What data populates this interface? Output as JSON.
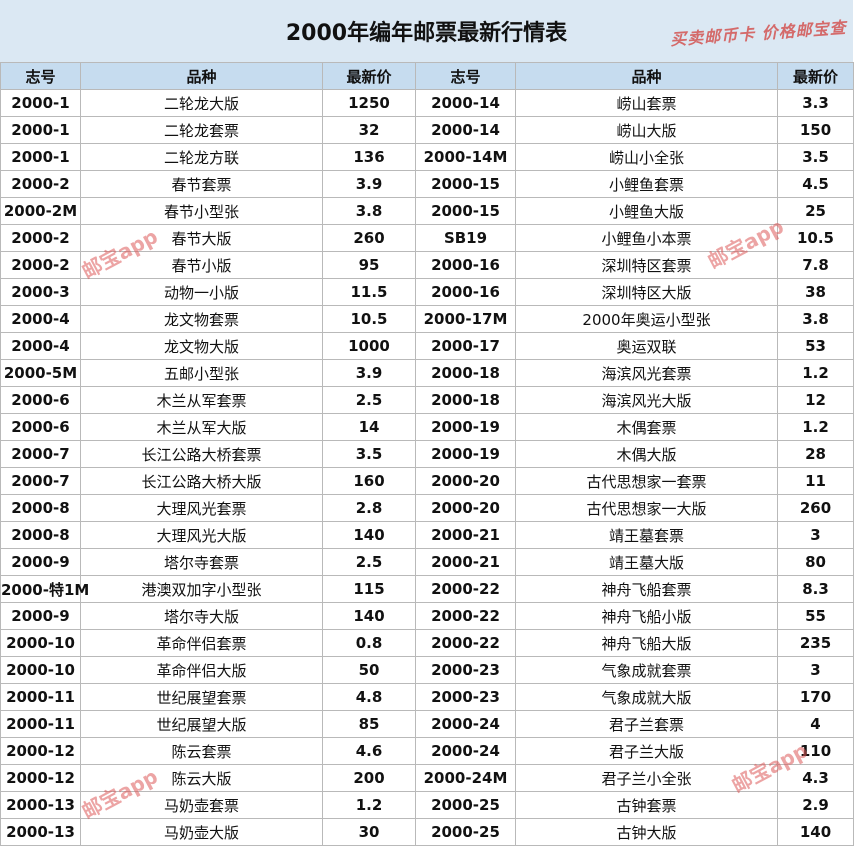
{
  "title": "2000年编年邮票最新行情表",
  "slogan": "买卖邮币卡 价格邮宝查",
  "watermark": "邮宝app",
  "headers": [
    "志号",
    "品种",
    "最新价",
    "志号",
    "品种",
    "最新价"
  ],
  "rows": [
    [
      "2000-1",
      "二轮龙大版",
      "1250",
      "2000-14",
      "崂山套票",
      "3.3"
    ],
    [
      "2000-1",
      "二轮龙套票",
      "32",
      "2000-14",
      "崂山大版",
      "150"
    ],
    [
      "2000-1",
      "二轮龙方联",
      "136",
      "2000-14M",
      "崂山小全张",
      "3.5"
    ],
    [
      "2000-2",
      "春节套票",
      "3.9",
      "2000-15",
      "小鲤鱼套票",
      "4.5"
    ],
    [
      "2000-2M",
      "春节小型张",
      "3.8",
      "2000-15",
      "小鲤鱼大版",
      "25"
    ],
    [
      "2000-2",
      "春节大版",
      "260",
      "SB19",
      "小鲤鱼小本票",
      "10.5"
    ],
    [
      "2000-2",
      "春节小版",
      "95",
      "2000-16",
      "深圳特区套票",
      "7.8"
    ],
    [
      "2000-3",
      "动物一小版",
      "11.5",
      "2000-16",
      "深圳特区大版",
      "38"
    ],
    [
      "2000-4",
      "龙文物套票",
      "10.5",
      "2000-17M",
      "2000年奥运小型张",
      "3.8"
    ],
    [
      "2000-4",
      "龙文物大版",
      "1000",
      "2000-17",
      "奥运双联",
      "53"
    ],
    [
      "2000-5M",
      "五邮小型张",
      "3.9",
      "2000-18",
      "海滨风光套票",
      "1.2"
    ],
    [
      "2000-6",
      "木兰从军套票",
      "2.5",
      "2000-18",
      "海滨风光大版",
      "12"
    ],
    [
      "2000-6",
      "木兰从军大版",
      "14",
      "2000-19",
      "木偶套票",
      "1.2"
    ],
    [
      "2000-7",
      "长江公路大桥套票",
      "3.5",
      "2000-19",
      "木偶大版",
      "28"
    ],
    [
      "2000-7",
      "长江公路大桥大版",
      "160",
      "2000-20",
      "古代思想家一套票",
      "11"
    ],
    [
      "2000-8",
      "大理风光套票",
      "2.8",
      "2000-20",
      "古代思想家一大版",
      "260"
    ],
    [
      "2000-8",
      "大理风光大版",
      "140",
      "2000-21",
      "靖王墓套票",
      "3"
    ],
    [
      "2000-9",
      "塔尔寺套票",
      "2.5",
      "2000-21",
      "靖王墓大版",
      "80"
    ],
    [
      "2000-特1M",
      "港澳双加字小型张",
      "115",
      "2000-22",
      "神舟飞船套票",
      "8.3"
    ],
    [
      "2000-9",
      "塔尔寺大版",
      "140",
      "2000-22",
      "神舟飞船小版",
      "55"
    ],
    [
      "2000-10",
      "革命伴侣套票",
      "0.8",
      "2000-22",
      "神舟飞船大版",
      "235"
    ],
    [
      "2000-10",
      "革命伴侣大版",
      "50",
      "2000-23",
      "气象成就套票",
      "3"
    ],
    [
      "2000-11",
      "世纪展望套票",
      "4.8",
      "2000-23",
      "气象成就大版",
      "170"
    ],
    [
      "2000-11",
      "世纪展望大版",
      "85",
      "2000-24",
      "君子兰套票",
      "4"
    ],
    [
      "2000-12",
      "陈云套票",
      "4.6",
      "2000-24",
      "君子兰大版",
      "110"
    ],
    [
      "2000-12",
      "陈云大版",
      "200",
      "2000-24M",
      "君子兰小全张",
      "4.3"
    ],
    [
      "2000-13",
      "马奶壶套票",
      "1.2",
      "2000-25",
      "古钟套票",
      "2.9"
    ],
    [
      "2000-13",
      "马奶壶大版",
      "30",
      "2000-25",
      "古钟大版",
      "140"
    ]
  ]
}
